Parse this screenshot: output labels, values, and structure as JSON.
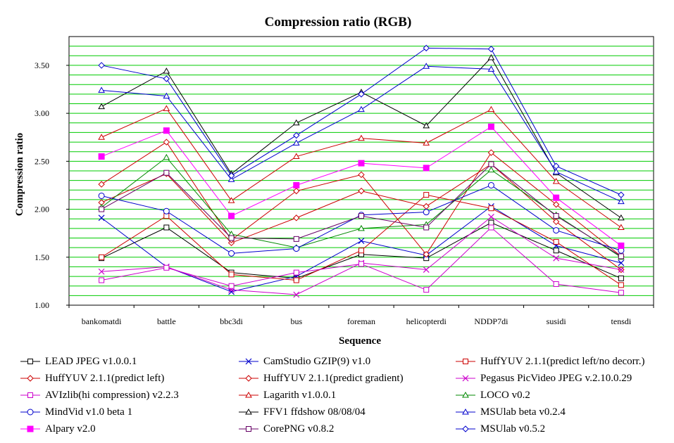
{
  "chart_data": {
    "type": "line",
    "title": "Compression ratio (RGB)",
    "xlabel": "Sequence",
    "ylabel": "Compression ratio",
    "ylim": [
      1.0,
      3.8
    ],
    "y_ticks": [
      "1.00",
      "1.50",
      "2.00",
      "2.50",
      "3.00",
      "3.50"
    ],
    "grid": true,
    "plot_background": "#ffffff",
    "grid_color": "#00cc00",
    "legend_position": "bottom",
    "categories": [
      "bankomatdi",
      "battle",
      "bbc3di",
      "bus",
      "foreman",
      "helicopterdi",
      "NDDP7di",
      "susidi",
      "tensdi"
    ],
    "series": [
      {
        "name": "LEAD JPEG v1.0.0.1",
        "color": "#000000",
        "marker": "square-open",
        "values": [
          1.49,
          1.81,
          1.34,
          1.28,
          1.53,
          1.49,
          1.86,
          1.57,
          1.28
        ]
      },
      {
        "name": "CamStudio GZIP(9) v1.0",
        "color": "#0000cc",
        "marker": "x",
        "values": [
          1.91,
          1.4,
          1.14,
          1.3,
          1.67,
          1.52,
          2.03,
          1.62,
          1.44
        ]
      },
      {
        "name": "HuffYUV 2.1.1(predict left/no decorr.)",
        "color": "#cc0000",
        "marker": "square-open",
        "values": [
          1.5,
          1.93,
          1.32,
          1.26,
          1.57,
          2.15,
          2.01,
          1.66,
          1.21
        ]
      },
      {
        "name": "HuffYUV 2.1.1(predict left)",
        "color": "#cc0000",
        "marker": "diamond-open",
        "values": [
          2.07,
          2.37,
          1.65,
          1.91,
          2.19,
          2.03,
          2.47,
          1.87,
          1.37
        ]
      },
      {
        "name": "HuffYUV 2.1.1(predict gradient)",
        "color": "#cc0000",
        "marker": "diamond-open",
        "values": [
          2.26,
          2.7,
          1.68,
          2.19,
          2.36,
          1.53,
          2.59,
          2.05,
          1.51
        ]
      },
      {
        "name": "Pegasus PicVideo JPEG v.2.10.0.29",
        "color": "#cc00cc",
        "marker": "x",
        "values": [
          1.35,
          1.4,
          1.16,
          1.11,
          1.44,
          1.37,
          1.92,
          1.49,
          1.37
        ]
      },
      {
        "name": "AVIzlib(hi compression) v2.2.3",
        "color": "#cc00cc",
        "marker": "square-open",
        "values": [
          1.26,
          1.39,
          1.2,
          1.34,
          1.43,
          1.16,
          1.81,
          1.22,
          1.13
        ]
      },
      {
        "name": "Lagarith v1.0.0.1",
        "color": "#cc0000",
        "marker": "triangle-open",
        "values": [
          2.75,
          3.05,
          2.09,
          2.55,
          2.74,
          2.69,
          3.04,
          2.29,
          1.81
        ]
      },
      {
        "name": "LOCO v0.2",
        "color": "#008800",
        "marker": "triangle-open",
        "values": [
          2.02,
          2.54,
          1.74,
          1.6,
          1.8,
          1.84,
          2.41,
          1.94,
          1.5
        ]
      },
      {
        "name": "MindVid v1.0 beta 1",
        "color": "#0000cc",
        "marker": "circle-open",
        "values": [
          2.14,
          1.98,
          1.54,
          1.59,
          1.94,
          1.97,
          2.25,
          1.78,
          1.57
        ]
      },
      {
        "name": "FFV1 ffdshow 08/08/04",
        "color": "#000000",
        "marker": "triangle-open",
        "values": [
          3.07,
          3.44,
          2.37,
          2.9,
          3.22,
          2.87,
          3.58,
          2.38,
          1.91
        ]
      },
      {
        "name": "MSUlab beta v0.2.4",
        "color": "#0000cc",
        "marker": "triangle-open",
        "values": [
          3.24,
          3.18,
          2.31,
          2.69,
          3.04,
          3.49,
          3.46,
          2.39,
          2.08
        ]
      },
      {
        "name": "Alpary v2.0",
        "color": "#ff00ff",
        "marker": "square-filled",
        "values": [
          2.55,
          2.82,
          1.93,
          2.25,
          2.48,
          2.43,
          2.86,
          2.12,
          1.62
        ]
      },
      {
        "name": "CorePNG v0.8.2",
        "color": "#660066",
        "marker": "square-open",
        "values": [
          2.0,
          2.38,
          1.7,
          1.69,
          1.93,
          1.81,
          2.47,
          1.93,
          1.51
        ]
      },
      {
        "name": "MSUlab v0.5.2",
        "color": "#0000cc",
        "marker": "diamond-open",
        "values": [
          3.5,
          3.36,
          2.35,
          2.77,
          3.2,
          3.68,
          3.67,
          2.45,
          2.15
        ]
      }
    ]
  }
}
